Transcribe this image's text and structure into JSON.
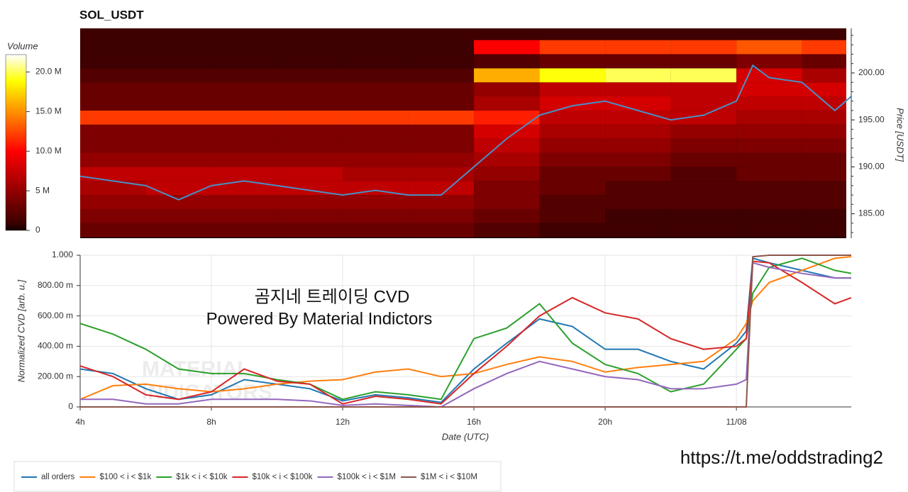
{
  "link": "https://t.me/oddstrading2",
  "chart_data": [
    {
      "type": "heatmap",
      "title": "SOL_USDT",
      "ylabel": "Price [USDT]",
      "colormap": "hot",
      "xlim": [
        4,
        27.5
      ],
      "ylim": [
        182.4,
        204.75
      ],
      "yticks": [
        {
          "value": 185,
          "label": "185.00"
        },
        {
          "value": 190,
          "label": "190.00"
        },
        {
          "value": 195,
          "label": "195.00"
        },
        {
          "value": 200,
          "label": "200.00"
        }
      ],
      "x_bins": [
        4,
        6,
        8,
        10,
        12,
        14,
        16,
        18,
        20,
        22,
        24,
        26,
        28
      ],
      "y_bins": [
        182.5,
        184,
        185.5,
        187,
        188.5,
        190,
        191.5,
        193,
        194.5,
        196,
        197.5,
        199,
        200.5,
        202,
        203.5,
        205
      ],
      "z": [
        [
          3000000,
          3000000,
          3000000,
          3000000,
          3000000,
          3000000,
          2000000,
          1000000,
          1000000,
          1000000,
          1000000,
          1000000
        ],
        [
          4000000,
          4000000,
          4000000,
          4000000,
          4000000,
          4000000,
          3000000,
          2000000,
          1000000,
          1000000,
          1000000,
          1000000
        ],
        [
          5000000,
          5000000,
          5000000,
          5000000,
          5000000,
          5000000,
          4000000,
          2000000,
          2000000,
          2000000,
          2000000,
          2000000
        ],
        [
          6000000,
          7000000,
          7000000,
          7000000,
          7000000,
          7000000,
          4000000,
          3000000,
          2000000,
          2000000,
          2000000,
          2000000
        ],
        [
          7000000,
          7000000,
          7000000,
          7000000,
          6000000,
          6000000,
          5000000,
          3000000,
          3000000,
          2000000,
          3000000,
          3000000
        ],
        [
          5000000,
          5000000,
          5000000,
          5000000,
          5000000,
          5000000,
          6000000,
          4000000,
          4000000,
          3000000,
          3000000,
          3000000
        ],
        [
          4000000,
          4000000,
          4000000,
          4000000,
          4000000,
          4000000,
          7000000,
          5000000,
          5000000,
          4000000,
          4000000,
          4000000
        ],
        [
          4000000,
          4000000,
          4000000,
          4000000,
          4000000,
          4000000,
          8000000,
          6000000,
          6000000,
          5000000,
          5000000,
          5000000
        ],
        [
          12000000,
          12000000,
          12000000,
          12000000,
          12000000,
          12000000,
          11000000,
          7000000,
          7000000,
          7000000,
          6000000,
          6000000
        ],
        [
          3000000,
          3000000,
          3000000,
          3000000,
          3000000,
          3000000,
          6000000,
          8000000,
          8000000,
          7000000,
          7000000,
          7000000
        ],
        [
          3000000,
          3000000,
          3000000,
          3000000,
          3000000,
          3000000,
          5000000,
          7000000,
          7000000,
          7000000,
          8000000,
          8000000
        ],
        [
          2000000,
          2000000,
          2000000,
          2000000,
          2000000,
          2000000,
          16000000,
          19000000,
          20000000,
          20000000,
          8000000,
          6000000
        ],
        [
          1000000,
          1000000,
          1000000,
          1000000,
          1000000,
          1000000,
          2000000,
          3000000,
          3000000,
          3000000,
          4000000,
          3000000
        ],
        [
          1000000,
          1000000,
          1000000,
          1000000,
          1000000,
          1000000,
          10000000,
          12000000,
          12000000,
          12000000,
          13000000,
          12000000
        ],
        [
          1000000,
          1000000,
          1000000,
          1000000,
          1000000,
          1000000,
          1000000,
          1000000,
          1000000,
          1000000,
          1000000,
          1000000
        ]
      ],
      "colorbar": {
        "title": "Volume",
        "lim": [
          0,
          22200000
        ],
        "ticks": [
          0,
          {
            "value": 5000000,
            "label": "5 M"
          },
          {
            "value": 10000000,
            "label": "10.0 M"
          },
          {
            "value": 15000000,
            "label": "15.0 M"
          },
          {
            "value": 20000000,
            "label": "20.0 M"
          }
        ]
      },
      "line": {
        "color": "#4a8fc6",
        "x": [
          4,
          5,
          6,
          7,
          8,
          9,
          10,
          11,
          12,
          13,
          14,
          15,
          16,
          17,
          18,
          19,
          20,
          21,
          22,
          23,
          24,
          24.5,
          25,
          26,
          27,
          27.5
        ],
        "values": [
          189,
          188.5,
          188,
          186.5,
          188,
          188.5,
          188,
          187.5,
          187,
          187.5,
          187,
          187,
          190,
          193,
          195.5,
          196.5,
          197,
          196,
          195,
          195.5,
          197,
          200.8,
          199.5,
          199,
          196,
          197.5
        ]
      }
    },
    {
      "type": "line",
      "xlabel": "Date (UTC)",
      "ylabel": "Normalized CVD [arb. u.]",
      "grid": true,
      "legend": "bottom",
      "annotations": [
        "곰지네 트레이딩 CVD",
        "Powered By Material Indictors"
      ],
      "logo": [
        "MATERIAL",
        "INDICATORS"
      ],
      "xlim": [
        4,
        27.5
      ],
      "ylim": [
        0,
        1
      ],
      "xticks": [
        {
          "value": 4,
          "label": "4h"
        },
        {
          "value": 8,
          "label": "8h"
        },
        {
          "value": 12,
          "label": "12h"
        },
        {
          "value": 16,
          "label": "16h"
        },
        {
          "value": 20,
          "label": "20h"
        },
        {
          "value": 24,
          "label": "11/08"
        }
      ],
      "yticks": [
        0,
        {
          "value": 0.2,
          "label": "200.00 m"
        },
        {
          "value": 0.4,
          "label": "400.00 m"
        },
        {
          "value": 0.6,
          "label": "600.00 m"
        },
        {
          "value": 0.8,
          "label": "800.00 m"
        },
        {
          "value": 1,
          "label": "1.000"
        }
      ],
      "x": [
        4,
        5,
        6,
        7,
        8,
        9,
        10,
        11,
        12,
        13,
        14,
        15,
        16,
        17,
        18,
        19,
        20,
        21,
        22,
        23,
        24,
        24.3,
        24.5,
        25,
        26,
        27,
        27.5
      ],
      "series": [
        {
          "name": "all orders",
          "color": "#1f77b4",
          "values": [
            0.25,
            0.22,
            0.12,
            0.05,
            0.08,
            0.18,
            0.15,
            0.12,
            0.04,
            0.08,
            0.06,
            0.03,
            0.25,
            0.42,
            0.58,
            0.53,
            0.38,
            0.38,
            0.3,
            0.25,
            0.42,
            0.5,
            0.98,
            0.95,
            0.9,
            0.85,
            0.85
          ]
        },
        {
          "name": "$100 < i < $1k",
          "color": "#ff7f0e",
          "values": [
            0.05,
            0.14,
            0.15,
            0.12,
            0.1,
            0.12,
            0.15,
            0.17,
            0.18,
            0.23,
            0.25,
            0.2,
            0.22,
            0.28,
            0.33,
            0.3,
            0.23,
            0.26,
            0.28,
            0.3,
            0.45,
            0.55,
            0.7,
            0.82,
            0.9,
            0.98,
            0.99
          ]
        },
        {
          "name": "$1k < i < $10k",
          "color": "#2ca02c",
          "values": [
            0.55,
            0.48,
            0.38,
            0.25,
            0.22,
            0.22,
            0.18,
            0.15,
            0.05,
            0.1,
            0.08,
            0.05,
            0.45,
            0.52,
            0.68,
            0.42,
            0.28,
            0.22,
            0.1,
            0.15,
            0.38,
            0.45,
            0.75,
            0.92,
            0.98,
            0.9,
            0.88
          ]
        },
        {
          "name": "$10k < i < $100k",
          "color": "#d62728",
          "values": [
            0.27,
            0.2,
            0.08,
            0.05,
            0.1,
            0.25,
            0.17,
            0.15,
            0.02,
            0.07,
            0.05,
            0.02,
            0.22,
            0.4,
            0.6,
            0.72,
            0.62,
            0.58,
            0.45,
            0.38,
            0.4,
            0.45,
            0.96,
            0.95,
            0.82,
            0.68,
            0.72
          ]
        },
        {
          "name": "$100k < i < $1M",
          "color": "#9467bd",
          "values": [
            0.05,
            0.05,
            0.02,
            0.02,
            0.05,
            0.05,
            0.05,
            0.04,
            0.01,
            0.02,
            0.01,
            0,
            0.12,
            0.22,
            0.3,
            0.25,
            0.2,
            0.18,
            0.12,
            0.12,
            0.15,
            0.18,
            0.95,
            0.92,
            0.88,
            0.85,
            0.85
          ]
        },
        {
          "name": "$1M < i < $10M",
          "color": "#8c564b",
          "values": [
            0,
            0,
            0,
            0,
            0,
            0,
            0,
            0,
            0,
            0,
            0,
            0,
            0,
            0,
            0,
            0,
            0,
            0,
            0,
            0,
            0,
            0,
            0.99,
            1,
            1,
            1,
            1
          ]
        }
      ]
    }
  ]
}
